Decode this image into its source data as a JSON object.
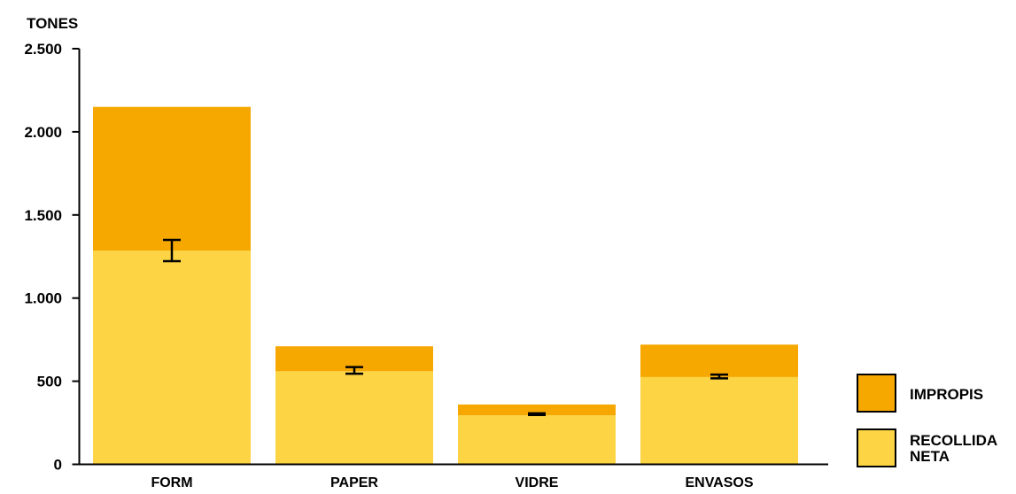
{
  "chart_data": {
    "type": "bar",
    "stacked": true,
    "ylabel": "TONES",
    "ylim": [
      0,
      2500
    ],
    "yticks": [
      {
        "value": 0,
        "label": "0"
      },
      {
        "value": 500,
        "label": "500"
      },
      {
        "value": 1000,
        "label": "1.000"
      },
      {
        "value": 1500,
        "label": "1.500"
      },
      {
        "value": 2000,
        "label": "2.000"
      },
      {
        "value": 2500,
        "label": "2.500"
      }
    ],
    "categories": [
      "FORM",
      "PAPER",
      "VIDRE",
      "ENVASOS"
    ],
    "series": [
      {
        "name": "RECOLLIDA NETA",
        "color": "#fdd444",
        "values": [
          1285,
          560,
          295,
          525
        ]
      },
      {
        "name": "IMPROPIS",
        "color": "#f6a800",
        "values": [
          865,
          150,
          65,
          195
        ]
      }
    ],
    "error_bars": [
      {
        "low": 1222,
        "high": 1350
      },
      {
        "low": 545,
        "high": 585
      },
      {
        "low": 297,
        "high": 307
      },
      {
        "low": 517,
        "high": 540
      }
    ],
    "legend": {
      "position": "right",
      "items": [
        {
          "lines": [
            "IMPROPIS"
          ],
          "color": "#f6a800"
        },
        {
          "lines": [
            "RECOLLIDA",
            "NETA"
          ],
          "color": "#fdd444"
        }
      ]
    },
    "grid": false
  }
}
